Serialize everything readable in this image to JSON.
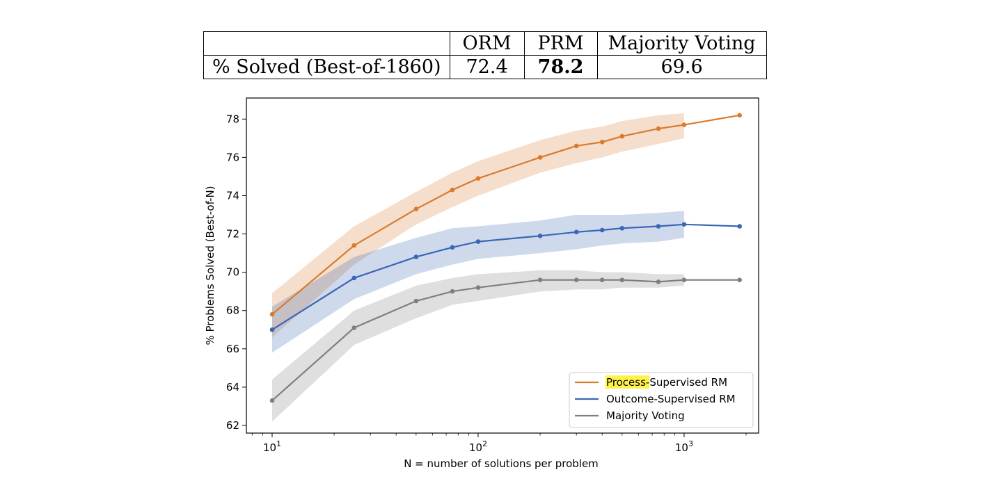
{
  "table": {
    "header": [
      "",
      "ORM",
      "PRM",
      "Majority Voting"
    ],
    "row": [
      "% Solved (Best-of-1860)",
      "72.4",
      "78.2",
      "69.6"
    ],
    "best_col": 2
  },
  "chart_data": {
    "type": "line",
    "xlabel": "N = number of solutions per problem",
    "ylabel": "% Problems Solved (Best-of-N)",
    "xscale": "log",
    "xlim": [
      7.5,
      2300
    ],
    "ylim": [
      61.6,
      79.1
    ],
    "yticks": [
      62,
      64,
      66,
      68,
      70,
      72,
      74,
      76,
      78
    ],
    "xticks": [
      {
        "base": "10",
        "exp": "1",
        "value": 10
      },
      {
        "base": "10",
        "exp": "2",
        "value": 100
      },
      {
        "base": "10",
        "exp": "3",
        "value": 1000
      }
    ],
    "grid": false,
    "legend_position": "lower-right",
    "x": [
      10,
      25,
      50,
      75,
      100,
      200,
      300,
      400,
      500,
      750,
      1000,
      1860
    ],
    "series": [
      {
        "name": "Process-Supervised RM",
        "name_highlight": "Process",
        "name_rest": "-Supervised RM",
        "color": "#D97A2F",
        "values": [
          67.8,
          71.4,
          73.3,
          74.3,
          74.9,
          76.0,
          76.6,
          76.8,
          77.1,
          77.5,
          77.7,
          78.2
        ],
        "lower": [
          66.6,
          70.4,
          72.5,
          73.4,
          74.0,
          75.2,
          75.7,
          76.0,
          76.3,
          76.7,
          77.0
        ],
        "upper": [
          68.9,
          72.4,
          74.2,
          75.2,
          75.8,
          76.9,
          77.4,
          77.6,
          77.9,
          78.2,
          78.3
        ]
      },
      {
        "name": "Outcome-Supervised RM",
        "color": "#3A66B5",
        "values": [
          67.0,
          69.7,
          70.8,
          71.3,
          71.6,
          71.9,
          72.1,
          72.2,
          72.3,
          72.4,
          72.5,
          72.4
        ],
        "lower": [
          65.8,
          68.6,
          69.9,
          70.4,
          70.7,
          71.0,
          71.2,
          71.4,
          71.5,
          71.6,
          71.8
        ],
        "upper": [
          68.2,
          70.8,
          71.8,
          72.3,
          72.4,
          72.7,
          73.0,
          73.0,
          73.0,
          73.1,
          73.2
        ]
      },
      {
        "name": "Majority Voting",
        "color": "#7F7F7F",
        "values": [
          63.3,
          67.1,
          68.5,
          69.0,
          69.2,
          69.6,
          69.6,
          69.6,
          69.6,
          69.5,
          69.6,
          69.6
        ],
        "lower": [
          62.2,
          66.2,
          67.6,
          68.3,
          68.5,
          69.0,
          69.1,
          69.1,
          69.2,
          69.2,
          69.3
        ],
        "upper": [
          64.4,
          68.0,
          69.3,
          69.7,
          69.9,
          70.1,
          70.1,
          70.0,
          70.0,
          69.9,
          69.9
        ]
      }
    ]
  }
}
